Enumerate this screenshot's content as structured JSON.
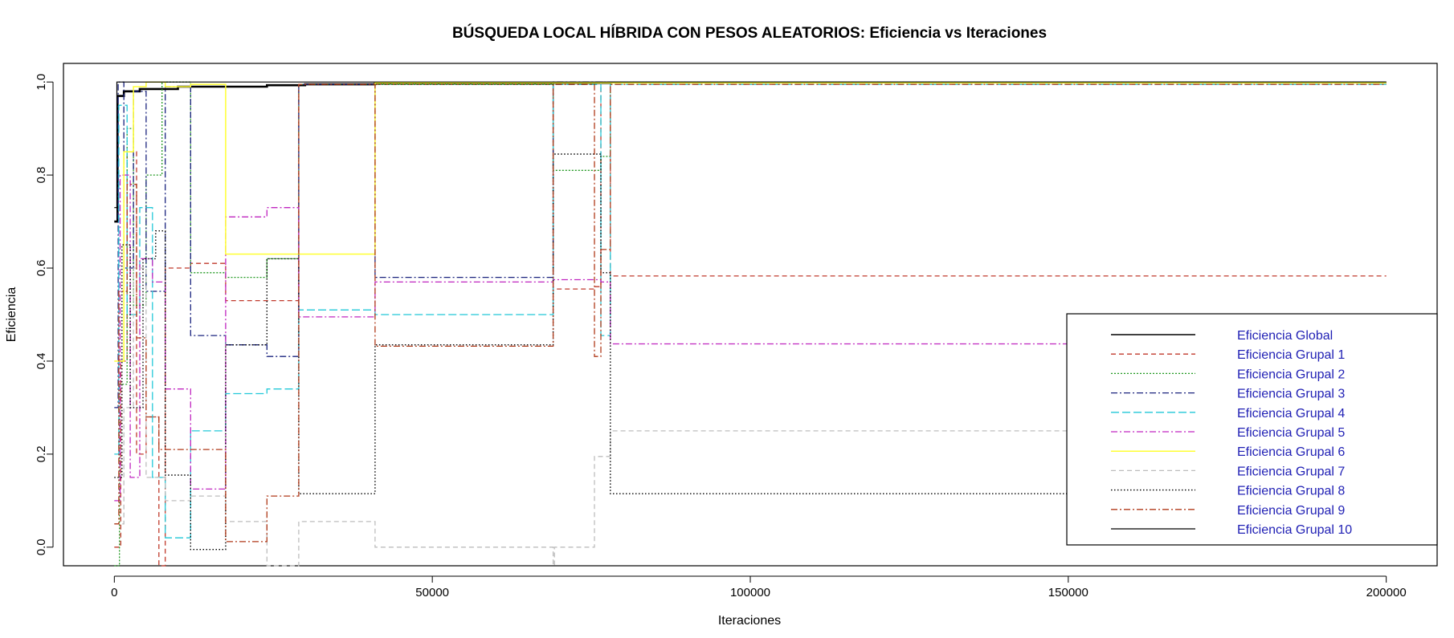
{
  "chart_data": {
    "type": "line",
    "title": "BÚSQUEDA LOCAL HÍBRIDA CON PESOS ALEATORIOS: Eficiencia vs Iteraciones",
    "xlabel": "Iteraciones",
    "ylabel": "Eficiencia",
    "xlim": [
      -8000,
      208000
    ],
    "ylim": [
      -0.04,
      1.04
    ],
    "x_ticks": [
      0,
      50000,
      100000,
      150000,
      200000
    ],
    "x_tick_labels": [
      "0",
      "50000",
      "100000",
      "150000",
      "200000"
    ],
    "y_ticks": [
      0.0,
      0.2,
      0.4,
      0.6,
      0.8,
      1.0
    ],
    "y_tick_labels": [
      "0.0",
      "0.2",
      "0.4",
      "0.6",
      "0.8",
      "1.0"
    ],
    "grid": false,
    "legend_position": "bottom-right",
    "step_lines": true,
    "series": [
      {
        "name": "Eficiencia Global",
        "color": "#000000",
        "dash": "solid",
        "width": 2.6,
        "points": [
          [
            0,
            0.7
          ],
          [
            500,
            0.97
          ],
          [
            1500,
            0.98
          ],
          [
            4000,
            0.985
          ],
          [
            10000,
            0.99
          ],
          [
            24000,
            0.993
          ],
          [
            30000,
            0.995
          ],
          [
            41000,
            0.997
          ],
          [
            69000,
            0.998
          ],
          [
            78000,
            0.999
          ],
          [
            200000,
            0.999
          ]
        ]
      },
      {
        "name": "Eficiencia Grupal 1",
        "color": "#c0392b",
        "dash": "6,4",
        "width": 1.3,
        "points": [
          [
            0,
            0.0
          ],
          [
            1000,
            0.4
          ],
          [
            2000,
            0.85
          ],
          [
            3500,
            0.2
          ],
          [
            5000,
            0.28
          ],
          [
            7000,
            -0.04
          ],
          [
            8000,
            0.6
          ],
          [
            12000,
            0.61
          ],
          [
            17500,
            0.53
          ],
          [
            24000,
            0.53
          ],
          [
            29000,
            0.995
          ],
          [
            41000,
            0.995
          ],
          [
            69000,
            0.555
          ],
          [
            75500,
            0.56
          ],
          [
            76500,
            1.0
          ],
          [
            78000,
            0.583
          ],
          [
            200000,
            0.583
          ]
        ]
      },
      {
        "name": "Eficiencia Grupal 2",
        "color": "#229922",
        "dash": "2,2",
        "width": 1.3,
        "points": [
          [
            0,
            -0.04
          ],
          [
            800,
            0.35
          ],
          [
            2000,
            0.9
          ],
          [
            3000,
            0.52
          ],
          [
            5000,
            0.8
          ],
          [
            7500,
            1.0
          ],
          [
            9000,
            1.0
          ],
          [
            12000,
            0.59
          ],
          [
            17500,
            0.58
          ],
          [
            24000,
            0.62
          ],
          [
            29000,
            0.995
          ],
          [
            41000,
            0.995
          ],
          [
            69000,
            0.81
          ],
          [
            76500,
            0.84
          ],
          [
            78000,
            1.0
          ],
          [
            200000,
            1.0
          ]
        ]
      },
      {
        "name": "Eficiencia Grupal 3",
        "color": "#1a237e",
        "dash": "8,3,2,3",
        "width": 1.3,
        "points": [
          [
            0,
            0.3
          ],
          [
            600,
            1.0
          ],
          [
            1500,
            0.6
          ],
          [
            3000,
            0.98
          ],
          [
            5000,
            0.55
          ],
          [
            8000,
            0.99
          ],
          [
            12000,
            0.455
          ],
          [
            17500,
            0.435
          ],
          [
            24000,
            0.41
          ],
          [
            29000,
            0.995
          ],
          [
            41000,
            0.58
          ],
          [
            69000,
            1.0
          ],
          [
            200000,
            1.0
          ]
        ]
      },
      {
        "name": "Eficiencia Grupal 4",
        "color": "#22c8d8",
        "dash": "10,4",
        "width": 1.3,
        "points": [
          [
            0,
            0.2
          ],
          [
            700,
            0.95
          ],
          [
            2000,
            0.5
          ],
          [
            4000,
            0.73
          ],
          [
            6000,
            0.15
          ],
          [
            8000,
            0.02
          ],
          [
            12000,
            0.25
          ],
          [
            17500,
            0.33
          ],
          [
            24000,
            0.34
          ],
          [
            29000,
            0.51
          ],
          [
            41000,
            0.5
          ],
          [
            69000,
            0.995
          ],
          [
            76500,
            0.455
          ],
          [
            78000,
            0.995
          ],
          [
            200000,
            0.995
          ]
        ]
      },
      {
        "name": "Eficiencia Grupal 5",
        "color": "#c026c0",
        "dash": "8,3,2,3",
        "width": 1.3,
        "points": [
          [
            0,
            0.1
          ],
          [
            900,
            0.8
          ],
          [
            2500,
            0.15
          ],
          [
            4000,
            0.62
          ],
          [
            6000,
            0.57
          ],
          [
            8000,
            0.34
          ],
          [
            12000,
            0.125
          ],
          [
            17500,
            0.71
          ],
          [
            24000,
            0.73
          ],
          [
            29000,
            0.495
          ],
          [
            41000,
            0.57
          ],
          [
            69000,
            0.575
          ],
          [
            76500,
            0.57
          ],
          [
            78000,
            0.437
          ],
          [
            200000,
            0.437
          ]
        ]
      },
      {
        "name": "Eficiencia Grupal 6",
        "color": "#ffff33",
        "dash": "solid",
        "width": 1.5,
        "points": [
          [
            0,
            0.4
          ],
          [
            1500,
            0.85
          ],
          [
            3000,
            0.99
          ],
          [
            5000,
            1.0
          ],
          [
            8000,
            0.99
          ],
          [
            12000,
            0.995
          ],
          [
            17500,
            0.63
          ],
          [
            41000,
            0.998
          ],
          [
            200000,
            0.998
          ]
        ]
      },
      {
        "name": "Eficiencia Grupal 7",
        "color": "#bdbdbd",
        "dash": "6,4",
        "width": 1.3,
        "points": [
          [
            0,
            0.05
          ],
          [
            1500,
            0.3
          ],
          [
            3000,
            0.6
          ],
          [
            5000,
            0.15
          ],
          [
            8000,
            0.1
          ],
          [
            12000,
            0.11
          ],
          [
            17500,
            0.055
          ],
          [
            24000,
            -0.04
          ],
          [
            29000,
            0.055
          ],
          [
            41000,
            0.0
          ],
          [
            69000,
            -0.04
          ],
          [
            69200,
            0.0
          ],
          [
            75500,
            0.195
          ],
          [
            78000,
            0.25
          ],
          [
            200000,
            0.25
          ]
        ]
      },
      {
        "name": "Eficiencia Grupal 8",
        "color": "#000000",
        "dash": "1.5,2.5",
        "width": 1.4,
        "points": [
          [
            0,
            0.15
          ],
          [
            1200,
            0.65
          ],
          [
            2500,
            0.3
          ],
          [
            4500,
            0.62
          ],
          [
            6500,
            0.68
          ],
          [
            8000,
            0.155
          ],
          [
            12000,
            -0.005
          ],
          [
            17500,
            0.435
          ],
          [
            24000,
            0.62
          ],
          [
            29000,
            0.115
          ],
          [
            41000,
            0.435
          ],
          [
            69000,
            0.845
          ],
          [
            76500,
            0.59
          ],
          [
            78000,
            0.115
          ],
          [
            200000,
            0.115
          ]
        ]
      },
      {
        "name": "Eficiencia Grupal 9",
        "color": "#b03a1a",
        "dash": "8,3,2,3",
        "width": 1.3,
        "points": [
          [
            0,
            0.05
          ],
          [
            700,
            0.55
          ],
          [
            2000,
            0.78
          ],
          [
            3500,
            0.45
          ],
          [
            5000,
            0.28
          ],
          [
            7000,
            0.21
          ],
          [
            12000,
            0.21
          ],
          [
            17500,
            0.012
          ],
          [
            24000,
            0.11
          ],
          [
            29000,
            0.995
          ],
          [
            41000,
            0.432
          ],
          [
            69000,
            0.995
          ],
          [
            75500,
            0.41
          ],
          [
            76500,
            0.64
          ],
          [
            78000,
            0.995
          ],
          [
            200000,
            0.995
          ]
        ]
      },
      {
        "name": "Eficiencia Grupal 10",
        "color": "#000000",
        "dash": "solid",
        "width": 1.2,
        "points": [
          [
            0,
            0.73
          ],
          [
            400,
            1.0
          ],
          [
            200000,
            1.0
          ]
        ]
      }
    ]
  }
}
